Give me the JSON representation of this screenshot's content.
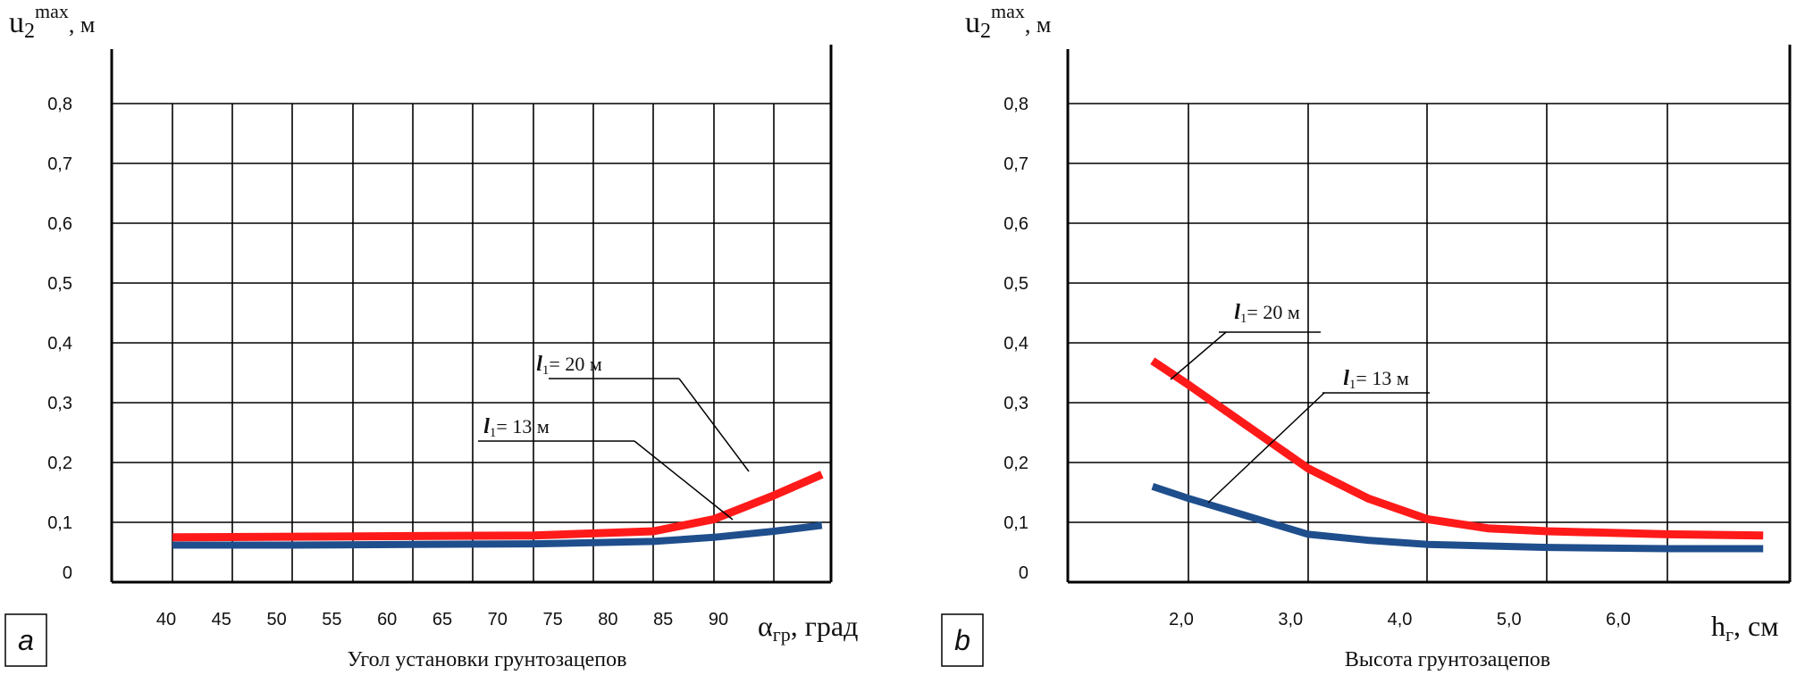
{
  "colors": {
    "series_red": "#ff1a1a",
    "series_blue": "#1f4e8c",
    "grid": "#000000"
  },
  "chart_data": [
    {
      "type": "line",
      "panel_label": "a",
      "ylabel_main": "u",
      "ylabel_sub": "2",
      "ylabel_sup": "max",
      "ylabel_unit": ", м",
      "xlabel_symbol": "α",
      "xlabel_sub": "гр",
      "xlabel_unit": ", град",
      "xlabel_caption": "Угол установки грунтозацепов",
      "x_ticks": [
        40,
        45,
        50,
        55,
        60,
        65,
        70,
        75,
        80,
        85,
        90
      ],
      "x_tick_labels": [
        "40",
        "45",
        "50",
        "55",
        "60",
        "65",
        "70",
        "75",
        "80",
        "85",
        "90"
      ],
      "y_ticks": [
        0,
        0.1,
        0.2,
        0.3,
        0.4,
        0.5,
        0.6,
        0.7,
        0.8
      ],
      "y_tick_labels": [
        "0",
        "0,1",
        "0,2",
        "0,3",
        "0,4",
        "0,5",
        "0,6",
        "0,7",
        "0,8"
      ],
      "ylim": [
        0,
        0.8
      ],
      "grid": true,
      "series": [
        {
          "name_italic": "l",
          "name_sub": "1",
          "name_rest": "= 20 м",
          "color": "#ff1a1a",
          "points": [
            [
              40,
              0.075
            ],
            [
              50,
              0.076
            ],
            [
              60,
              0.077
            ],
            [
              70,
              0.078
            ],
            [
              80,
              0.085
            ],
            [
              85,
              0.105
            ],
            [
              90,
              0.145
            ],
            [
              94,
              0.18
            ]
          ]
        },
        {
          "name_italic": "l",
          "name_sub": "1",
          "name_rest": "= 13 м",
          "color": "#1f4e8c",
          "points": [
            [
              40,
              0.062
            ],
            [
              50,
              0.062
            ],
            [
              60,
              0.063
            ],
            [
              70,
              0.064
            ],
            [
              80,
              0.068
            ],
            [
              85,
              0.075
            ],
            [
              90,
              0.085
            ],
            [
              94,
              0.095
            ]
          ]
        }
      ]
    },
    {
      "type": "line",
      "panel_label": "b",
      "ylabel_main": "u",
      "ylabel_sub": "2",
      "ylabel_sup": "max",
      "ylabel_unit": ", м",
      "xlabel_symbol": "h",
      "xlabel_sub": "г",
      "xlabel_unit": ", см",
      "xlabel_caption": "Высота грунтозацепов",
      "x_ticks": [
        2.0,
        3.0,
        4.0,
        5.0,
        6.0
      ],
      "x_tick_labels": [
        "2,0",
        "3,0",
        "4,0",
        "5,0",
        "6,0"
      ],
      "y_ticks": [
        0,
        0.1,
        0.2,
        0.3,
        0.4,
        0.5,
        0.6,
        0.7,
        0.8
      ],
      "y_tick_labels": [
        "0",
        "0,1",
        "0,2",
        "0,3",
        "0,4",
        "0,5",
        "0,6",
        "0,7",
        "0,8"
      ],
      "ylim": [
        0,
        0.8
      ],
      "grid": true,
      "series": [
        {
          "name_italic": "l",
          "name_sub": "1",
          "name_rest": "= 20 м",
          "color": "#ff1a1a",
          "points": [
            [
              1.7,
              0.37
            ],
            [
              2.0,
              0.33
            ],
            [
              2.5,
              0.26
            ],
            [
              3.0,
              0.19
            ],
            [
              3.5,
              0.14
            ],
            [
              4.0,
              0.105
            ],
            [
              4.5,
              0.09
            ],
            [
              5.0,
              0.085
            ],
            [
              6.0,
              0.08
            ],
            [
              6.8,
              0.078
            ]
          ]
        },
        {
          "name_italic": "l",
          "name_sub": "1",
          "name_rest": "= 13 м",
          "color": "#1f4e8c",
          "points": [
            [
              1.7,
              0.16
            ],
            [
              2.0,
              0.14
            ],
            [
              2.5,
              0.11
            ],
            [
              3.0,
              0.08
            ],
            [
              3.5,
              0.07
            ],
            [
              4.0,
              0.063
            ],
            [
              5.0,
              0.058
            ],
            [
              6.0,
              0.056
            ],
            [
              6.8,
              0.056
            ]
          ]
        }
      ]
    }
  ]
}
